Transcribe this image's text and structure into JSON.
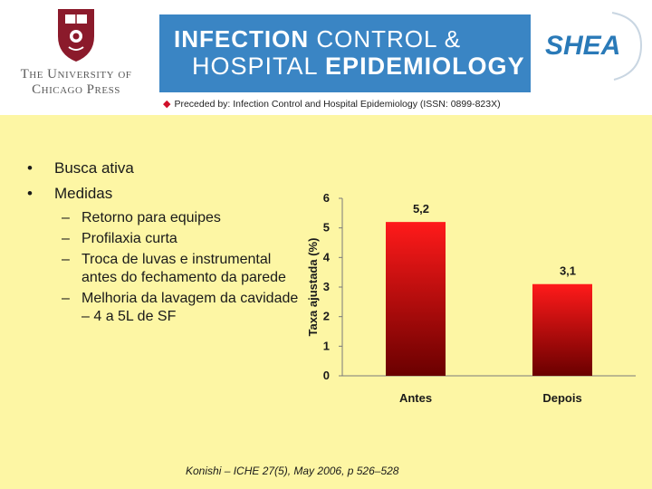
{
  "header": {
    "publisher_line1": "The University of",
    "publisher_line2": "Chicago Press",
    "journal_title_line1_a": "INFECTION",
    "journal_title_line1_b": " CONTROL &",
    "journal_title_line2_a": "HOSPITAL ",
    "journal_title_line2_b": "EPIDEMIOLOGY",
    "partner_logo_text": "SHEA",
    "preceded_by": "Preceded by: Infection Control and Hospital Epidemiology (ISSN: 0899-823X)"
  },
  "bullets": [
    {
      "marker": "•",
      "text": "Busca ativa"
    },
    {
      "marker": "•",
      "text": "Medidas",
      "subitems": [
        {
          "marker": "–",
          "text": "Retorno para equipes"
        },
        {
          "marker": "–",
          "text": "Profilaxia curta"
        },
        {
          "marker": "–",
          "text": "Troca de luvas e instrumental antes do fechamento da parede"
        },
        {
          "marker": "–",
          "text": "Melhoria da lavagem da cavidade – 4 a 5L de SF"
        }
      ]
    }
  ],
  "citation": "Konishi – ICHE 27(5), May 2006, p 526–528",
  "colors": {
    "bar_top": "#ff1a1a",
    "bar_bottom": "#6a0000",
    "slide_bg": "#fdf6a4",
    "banner": "#3a85c4",
    "crest": "#8b1a2b"
  },
  "chart_data": {
    "type": "bar",
    "categories": [
      "Antes",
      "Depois"
    ],
    "values": [
      5.2,
      3.1
    ],
    "data_labels": [
      "5,2",
      "3,1"
    ],
    "ylabel": "Taxa ajustada (%)",
    "ylim": [
      0,
      6
    ],
    "yticks": [
      0,
      1,
      2,
      3,
      4,
      5,
      6
    ],
    "grid": false,
    "legend": "none"
  }
}
